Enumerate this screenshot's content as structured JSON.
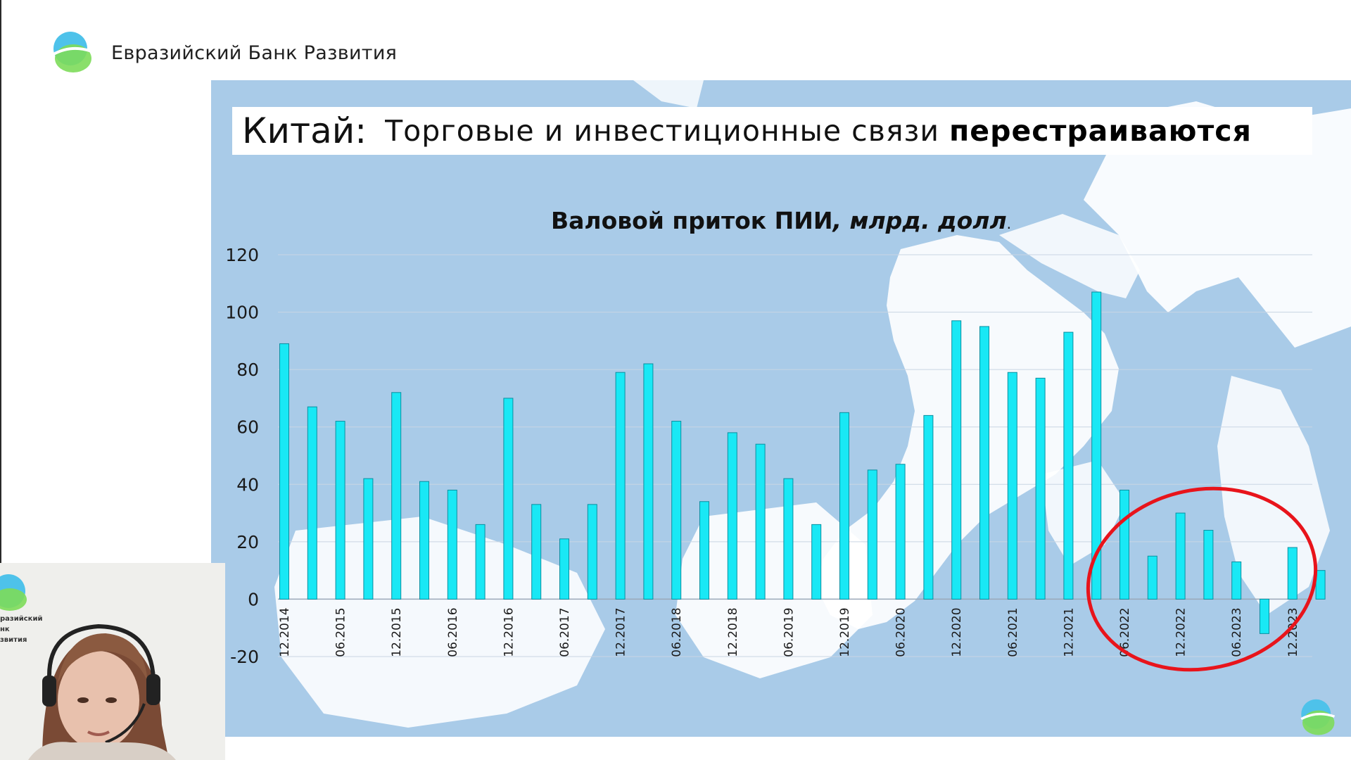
{
  "header": {
    "bank_name": "Евразийский Банк Развития",
    "logo_icon": "eabr-logo-icon"
  },
  "slide": {
    "title_lead": "Китай:",
    "title_rest": "Торговые и инвестиционные связи",
    "title_bold": "перестраиваются"
  },
  "camera": {
    "overlay_text": [
      "разийский",
      "нк",
      "звития"
    ]
  },
  "colors": {
    "bar": "#19e8f5",
    "bar_stroke": "#0a8fa0",
    "slide_bg": "#a9cbe8",
    "land": "#ffffff",
    "highlight_circle": "#e8141b"
  },
  "chart_data": {
    "type": "bar",
    "title_bold": "Валовой приток ПИИ",
    "title_italic": ", млрд. долл",
    "title_suffix": ".",
    "ylim": [
      -20,
      120
    ],
    "yticks": [
      -20,
      0,
      20,
      40,
      60,
      80,
      100,
      120
    ],
    "grid": true,
    "legend": "none",
    "x_labels": [
      "12.2014",
      "06.2015",
      "12.2015",
      "06.2016",
      "12.2016",
      "06.2017",
      "12.2017",
      "06.2018",
      "12.2018",
      "06.2019",
      "12.2019",
      "06.2020",
      "12.2020",
      "06.2021",
      "12.2021",
      "06.2022",
      "12.2022",
      "06.2023",
      "12.2023"
    ],
    "values": [
      89,
      67,
      62,
      42,
      72,
      41,
      38,
      26,
      70,
      33,
      21,
      33,
      79,
      82,
      62,
      34,
      58,
      54,
      42,
      26,
      65,
      45,
      47,
      64,
      97,
      95,
      79,
      77,
      93,
      107,
      38,
      15,
      30,
      24,
      13,
      -12,
      18,
      10
    ],
    "annotation": "highlight-circle-recent-quarters"
  }
}
